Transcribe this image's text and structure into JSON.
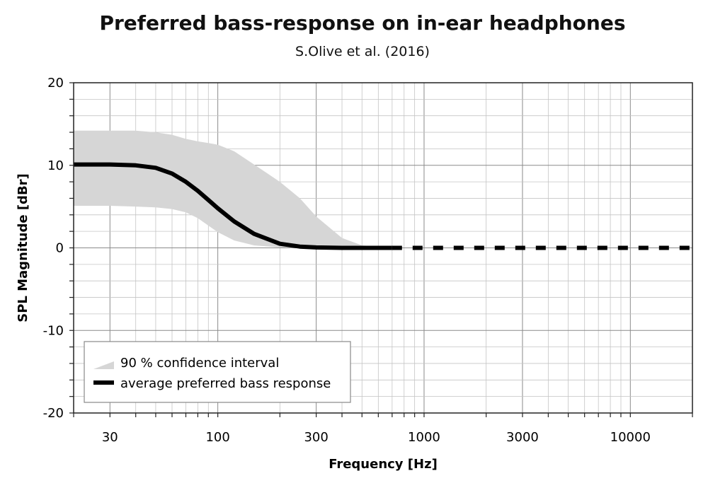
{
  "chart_data": {
    "type": "line",
    "title": "Preferred bass-response on in-ear headphones",
    "subtitle": "S.Olive et al. (2016)",
    "xlabel": "Frequency [Hz]",
    "ylabel": "SPL Magnitude [dBr]",
    "x_scale": "log",
    "xlim": [
      20,
      20000
    ],
    "ylim": [
      -20,
      20
    ],
    "x_ticks": [
      30,
      100,
      300,
      1000,
      3000,
      10000
    ],
    "x_tick_labels": [
      "30",
      "100",
      "300",
      "1000",
      "3000",
      "10000"
    ],
    "y_ticks": [
      -20,
      -10,
      0,
      10,
      20
    ],
    "y_tick_labels": [
      "-20",
      "-10",
      "0",
      "10",
      "20"
    ],
    "grid": true,
    "legend_position": "bottom-left",
    "series": [
      {
        "name": "average preferred bass response",
        "color": "#000000",
        "x": [
          20,
          30,
          40,
          50,
          60,
          70,
          80,
          90,
          100,
          120,
          150,
          200,
          250,
          300,
          400,
          500,
          700
        ],
        "y": [
          10.1,
          10.1,
          10.0,
          9.7,
          9.0,
          8.0,
          6.9,
          5.8,
          4.8,
          3.2,
          1.7,
          0.5,
          0.15,
          0.05,
          0.0,
          0.0,
          0.0
        ]
      },
      {
        "name": "",
        "style": "dashed",
        "color": "#000000",
        "x": [
          700,
          20000
        ],
        "y": [
          0.0,
          0.0
        ]
      }
    ],
    "band": {
      "name": "90 % confidence interval",
      "color": "#d6d6d6",
      "x": [
        20,
        30,
        40,
        50,
        60,
        70,
        80,
        90,
        100,
        120,
        150,
        200,
        250,
        300,
        400,
        500,
        700
      ],
      "upper": [
        14.2,
        14.2,
        14.2,
        14.0,
        13.7,
        13.2,
        12.9,
        12.7,
        12.5,
        11.7,
        10.1,
        8.0,
        6.0,
        3.8,
        1.2,
        0.3,
        0.0
      ],
      "lower": [
        5.1,
        5.1,
        5.0,
        4.9,
        4.7,
        4.3,
        3.6,
        2.7,
        1.9,
        0.9,
        0.3,
        0.05,
        0.0,
        0.0,
        0.0,
        0.0,
        0.0
      ]
    }
  }
}
